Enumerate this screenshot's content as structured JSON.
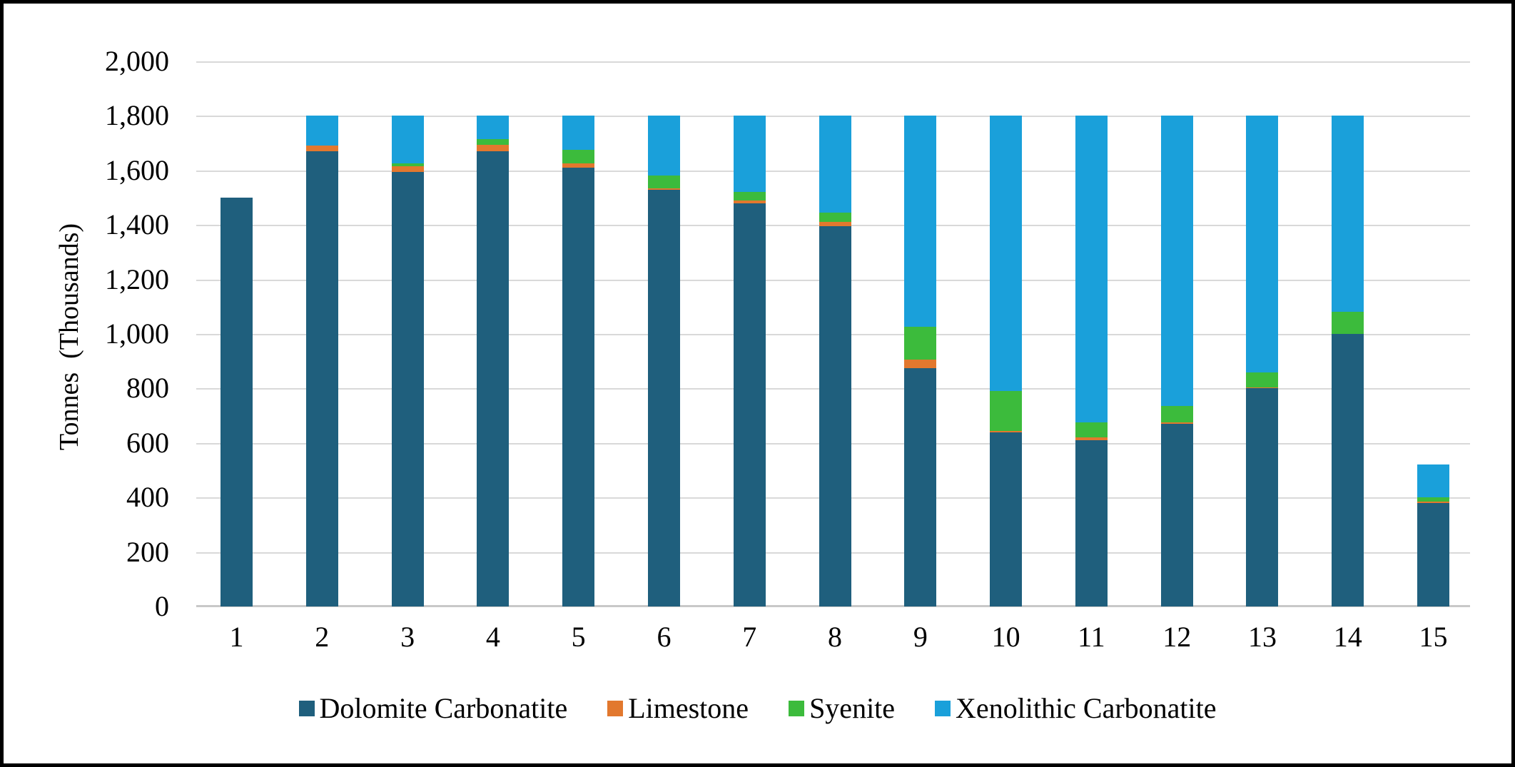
{
  "chart_data": {
    "type": "bar",
    "stacked": true,
    "title": "",
    "xlabel": "",
    "ylabel": "Tonnes  (Thousands)",
    "ylim": [
      0,
      2000
    ],
    "ytick_step": 200,
    "ytick_labels": [
      "0",
      "200",
      "400",
      "600",
      "800",
      "1,000",
      "1,200",
      "1,400",
      "1,600",
      "1,800",
      "2,000"
    ],
    "grid": true,
    "legend_position": "bottom",
    "categories": [
      "1",
      "2",
      "3",
      "4",
      "5",
      "6",
      "7",
      "8",
      "9",
      "10",
      "11",
      "12",
      "13",
      "14",
      "15"
    ],
    "series": [
      {
        "name": "Dolomite Carbonatite",
        "color": "#1F5F7D",
        "values": [
          1500,
          1670,
          1595,
          1670,
          1610,
          1530,
          1480,
          1395,
          875,
          640,
          610,
          670,
          800,
          1000,
          380
        ]
      },
      {
        "name": "Limestone",
        "color": "#E2782E",
        "values": [
          0,
          20,
          20,
          25,
          15,
          5,
          10,
          15,
          30,
          5,
          10,
          5,
          5,
          0,
          5
        ]
      },
      {
        "name": "Syenite",
        "color": "#3CBB3C",
        "values": [
          0,
          0,
          10,
          20,
          50,
          45,
          30,
          35,
          120,
          145,
          55,
          60,
          55,
          80,
          15
        ]
      },
      {
        "name": "Xenolithic Carbonatite",
        "color": "#1AA0DA",
        "values": [
          0,
          110,
          175,
          85,
          125,
          220,
          280,
          355,
          775,
          1010,
          1125,
          1065,
          940,
          720,
          120
        ]
      }
    ],
    "bar_totals": [
      1500,
      1800,
      1800,
      1800,
      1800,
      1800,
      1800,
      1800,
      1800,
      1800,
      1800,
      1800,
      1800,
      1800,
      520
    ]
  },
  "colors": {
    "gridline": "#d9d9d9",
    "axis_line": "#c8c8c8",
    "text": "#000000",
    "frame_border": "#000000",
    "background": "#ffffff"
  }
}
